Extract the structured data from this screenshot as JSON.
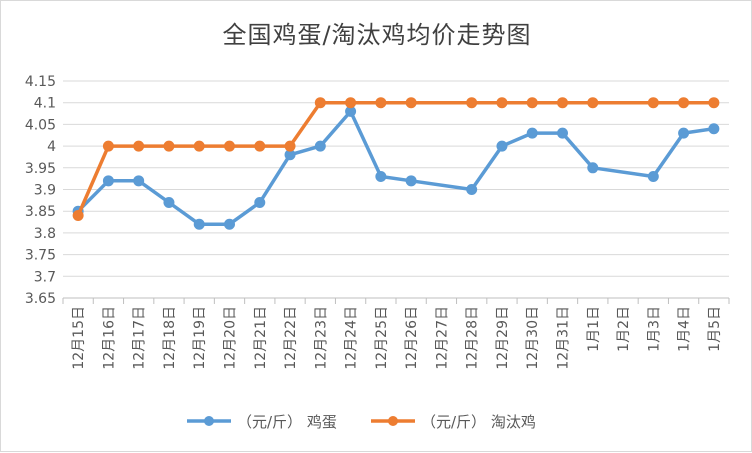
{
  "chart_data": {
    "type": "line",
    "title": "全国鸡蛋/淘汰鸡均价走势图",
    "xlabel": "",
    "ylabel": "",
    "categories": [
      "12月15日",
      "12月16日",
      "12月17日",
      "12月18日",
      "12月19日",
      "12月20日",
      "12月21日",
      "12月22日",
      "12月23日",
      "12月24日",
      "12月25日",
      "12月26日",
      "12月27日",
      "12月28日",
      "12月29日",
      "12月30日",
      "12月31日",
      "1月1日",
      "1月2日",
      "1月3日",
      "1月4日",
      "1月5日"
    ],
    "ylim": [
      3.65,
      4.15
    ],
    "yticks": [
      "4.15",
      "4.1",
      "4.05",
      "4",
      "3.95",
      "3.9",
      "3.85",
      "3.8",
      "3.75",
      "3.7",
      "3.65"
    ],
    "grid": true,
    "legend_position": "bottom",
    "series": [
      {
        "name": "（元/斤） 鸡蛋",
        "color": "#5b9bd5",
        "values": [
          3.85,
          3.92,
          3.92,
          3.87,
          3.82,
          3.82,
          3.87,
          3.98,
          4.0,
          4.08,
          3.93,
          3.92,
          null,
          3.9,
          4.0,
          4.03,
          4.03,
          3.95,
          null,
          3.93,
          4.03,
          4.04
        ]
      },
      {
        "name": "（元/斤） 淘汰鸡",
        "color": "#ed7d31",
        "values": [
          3.84,
          4.0,
          4.0,
          4.0,
          4.0,
          4.0,
          4.0,
          4.0,
          4.1,
          4.1,
          4.1,
          4.1,
          null,
          4.1,
          4.1,
          4.1,
          4.1,
          4.1,
          null,
          4.1,
          4.1,
          4.1
        ]
      }
    ]
  }
}
